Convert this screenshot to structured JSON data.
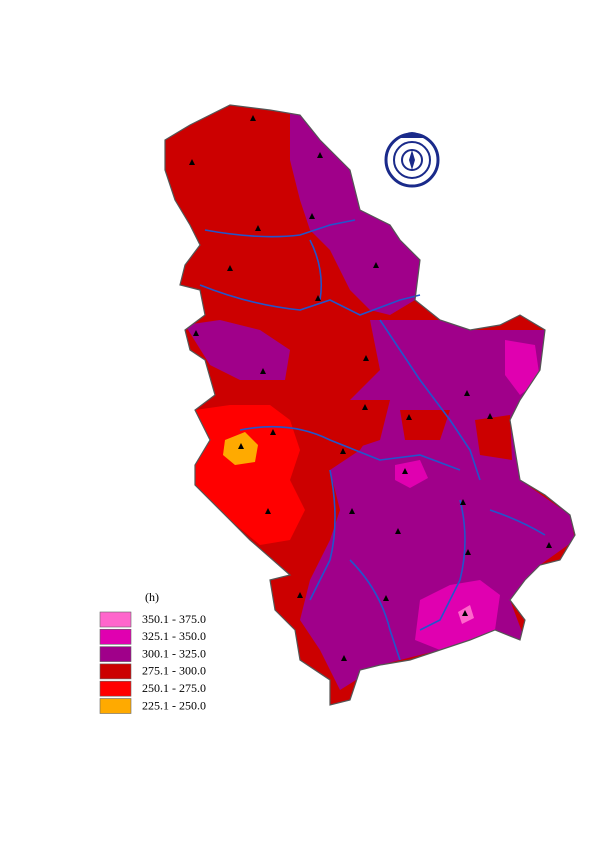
{
  "legend": {
    "title": "(h)",
    "items": [
      {
        "label": "350.1 - 375.0",
        "color": "#ff66cc"
      },
      {
        "label": "325.1 - 350.0",
        "color": "#e000b0"
      },
      {
        "label": "300.1 - 325.0",
        "color": "#a0008a"
      },
      {
        "label": "275.1 - 300.0",
        "color": "#cc0000"
      },
      {
        "label": "250.1 - 275.0",
        "color": "#ff0000"
      },
      {
        "label": "225.1 - 250.0",
        "color": "#ffaa00"
      }
    ]
  }
}
